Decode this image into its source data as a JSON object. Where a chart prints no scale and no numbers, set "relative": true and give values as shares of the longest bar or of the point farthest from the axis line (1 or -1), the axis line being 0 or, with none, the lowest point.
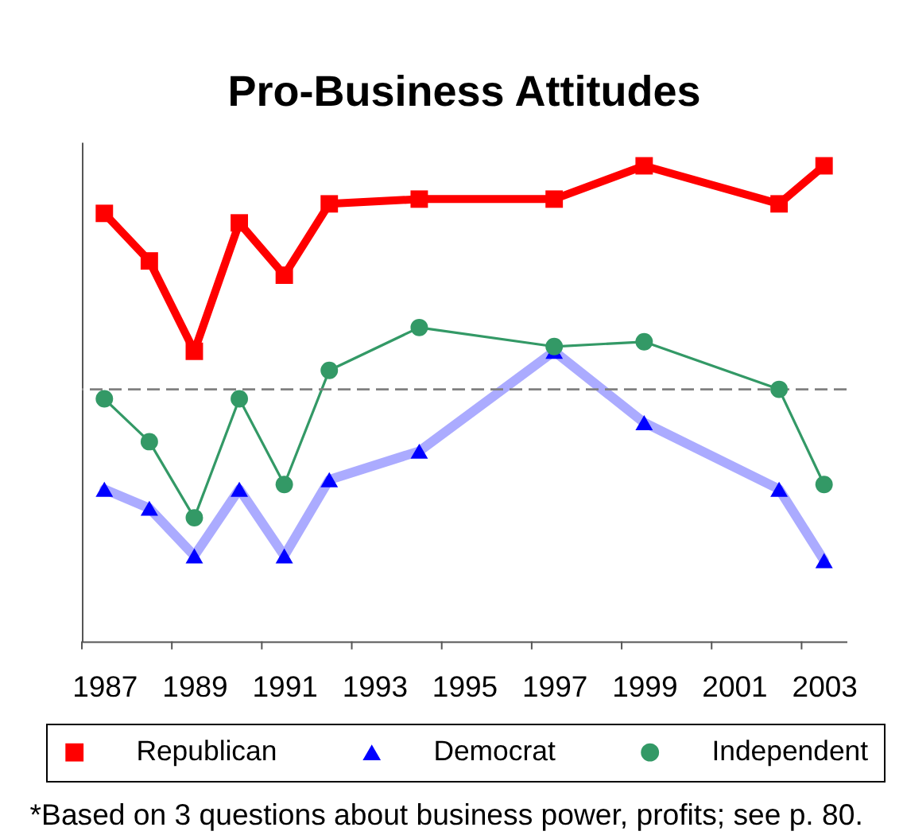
{
  "chart_data": {
    "type": "line",
    "title": "Pro-Business Attitudes",
    "relative": true,
    "x": [
      1987,
      1988,
      1989,
      1990,
      1991,
      1992,
      1994,
      1997,
      1999,
      2002,
      2003
    ],
    "xlim": [
      1986.5,
      2003.5
    ],
    "xticks": [
      {
        "value": 1986.5,
        "label": null
      },
      1987,
      {
        "value": 1988.5,
        "label": null
      },
      1989,
      {
        "value": 1990.5,
        "label": null
      },
      1991,
      {
        "value": 1992.5,
        "label": null
      },
      1993,
      {
        "value": 1994.5,
        "label": null
      },
      1995,
      {
        "value": 1996.5,
        "label": null
      },
      1997,
      {
        "value": 1998.5,
        "label": null
      },
      1999,
      {
        "value": 2000.5,
        "label": null
      },
      2001,
      {
        "value": 2002.5,
        "label": null
      },
      2003
    ],
    "series": [
      {
        "name": "Republican",
        "color": "#ff0000",
        "marker": "square",
        "values": [
          0.9,
          0.8,
          0.61,
          0.88,
          0.77,
          0.92,
          0.93,
          0.93,
          1.0,
          0.92,
          1.0
        ]
      },
      {
        "name": "Democrat",
        "color": "#0000ff",
        "marker": "triangle",
        "values": [
          0.32,
          0.28,
          0.18,
          0.32,
          0.18,
          0.34,
          0.4,
          0.61,
          0.46,
          0.32,
          0.17
        ]
      },
      {
        "name": "Independent",
        "color": "#339966",
        "marker": "circle",
        "values": [
          0.51,
          0.42,
          0.26,
          0.51,
          0.33,
          0.57,
          0.66,
          0.62,
          0.63,
          0.53,
          0.33
        ]
      }
    ],
    "ref_lines": [
      {
        "axis": "y",
        "value": 0.53,
        "color": "#808080",
        "line_style": "dashed"
      }
    ],
    "legend": "bottom",
    "annotations": [
      "*Based on 3 questions about business power, profits; see p. 80."
    ]
  }
}
